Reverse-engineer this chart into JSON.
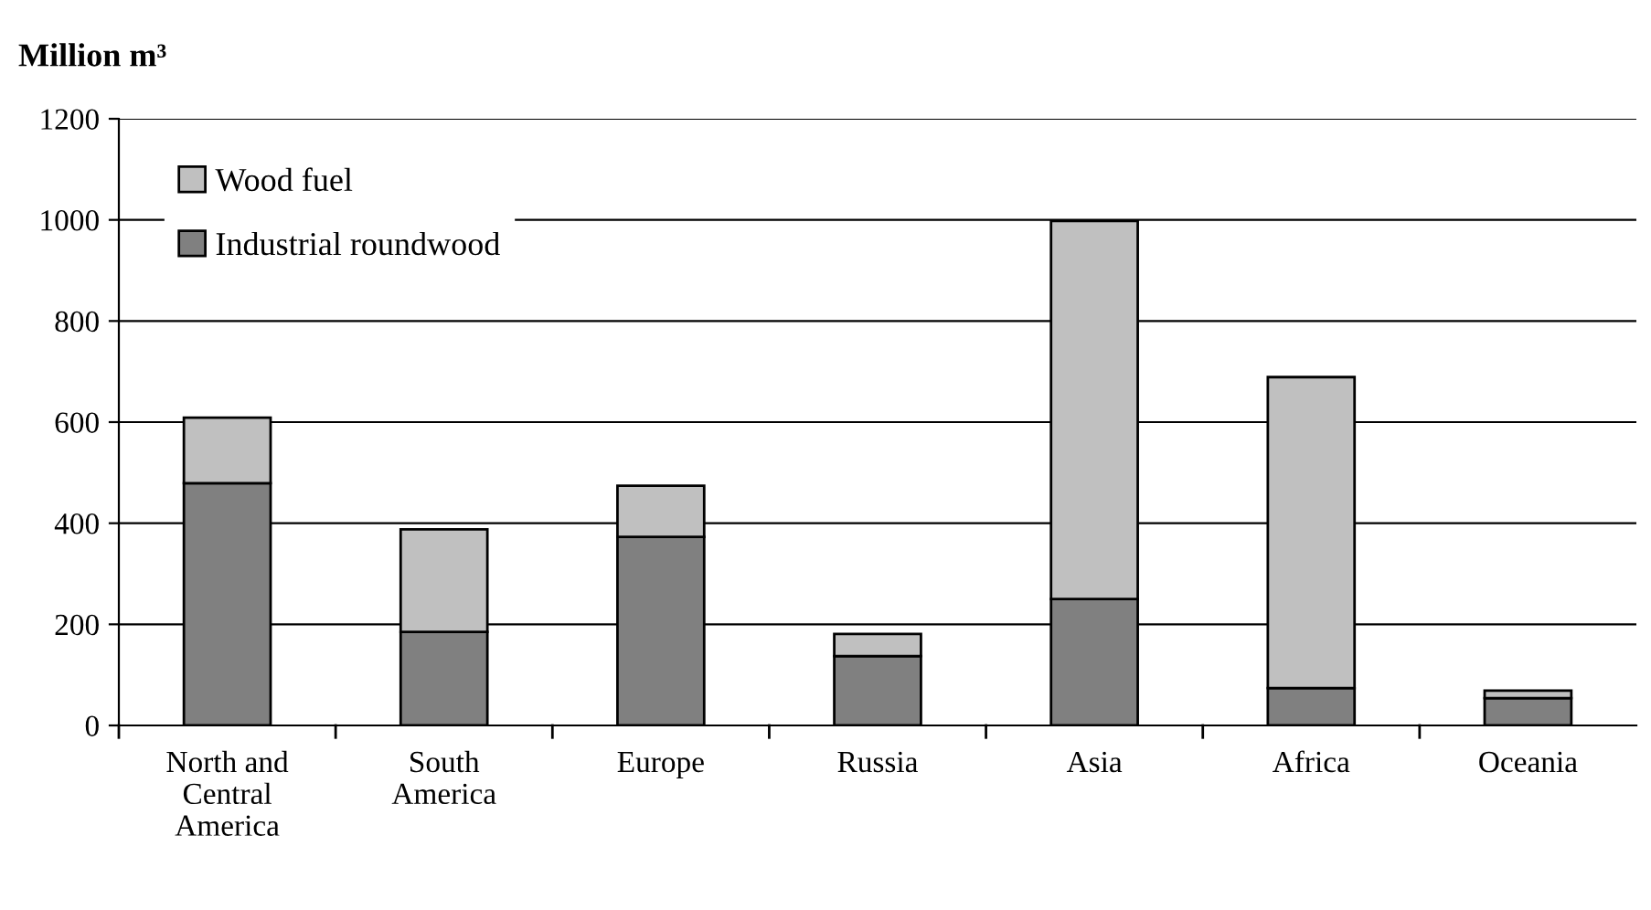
{
  "chart_data": {
    "type": "bar",
    "title": "Million m³",
    "stacked": true,
    "categories": [
      "North and\nCentral\nAmerica",
      "South\nAmerica",
      "Europe",
      "Russia",
      "Asia",
      "Africa",
      "Oceania"
    ],
    "series": [
      {
        "name": "Industrial roundwood",
        "color": "#808080",
        "values": [
          479,
          185,
          373,
          137,
          250,
          74,
          54
        ]
      },
      {
        "name": "Wood fuel",
        "color": "#c0c0c0",
        "values": [
          130,
          203,
          101,
          44,
          748,
          615,
          15
        ]
      }
    ],
    "ylim": [
      0,
      1200
    ],
    "yticks": [
      0,
      200,
      400,
      600,
      800,
      1000,
      1200
    ],
    "grid": "y",
    "legend": "top left"
  }
}
